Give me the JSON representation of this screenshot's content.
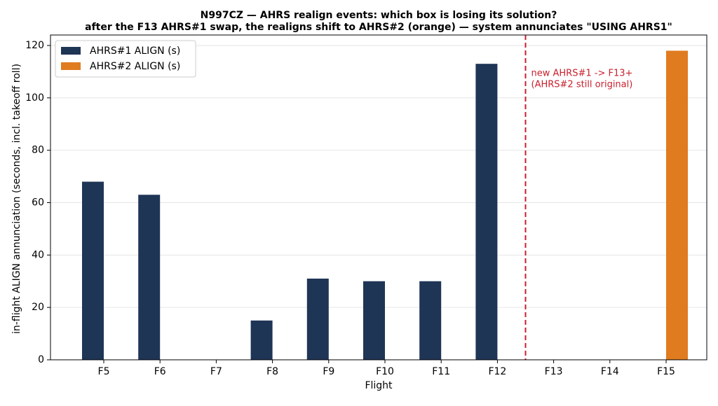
{
  "chart_data": {
    "type": "bar",
    "title": "N997CZ — AHRS realign events: which box is losing its solution?",
    "subtitle": "after the F13 AHRS#1 swap, the realigns shift to AHRS#2 (orange) — system annunciates \"USING AHRS1\"",
    "x_label": "Flight",
    "y_label": "in-flight ALIGN annunciation (seconds, incl. takeoff roll)",
    "categories": [
      "F5",
      "F6",
      "F7",
      "F8",
      "F9",
      "F10",
      "F11",
      "F12",
      "F13",
      "F14",
      "F15"
    ],
    "series": [
      {
        "name": "AHRS#1 ALIGN (s)",
        "color": "#1f3556",
        "values": [
          68,
          63,
          0,
          15,
          31,
          30,
          30,
          113,
          0,
          0,
          0
        ]
      },
      {
        "name": "AHRS#2 ALIGN (s)",
        "color": "#e07b20",
        "values": [
          0,
          0,
          0,
          0,
          0,
          0,
          0,
          0,
          0,
          0,
          118
        ]
      }
    ],
    "ylim": [
      0,
      124
    ],
    "yticks": [
      0,
      20,
      40,
      60,
      80,
      100,
      120
    ],
    "grid": true,
    "legend": "upper-left",
    "divider": {
      "after": "F12",
      "color": "#c8202c",
      "text": [
        "new AHRS#1 -> F13+",
        "(AHRS#2 still original)"
      ]
    }
  }
}
